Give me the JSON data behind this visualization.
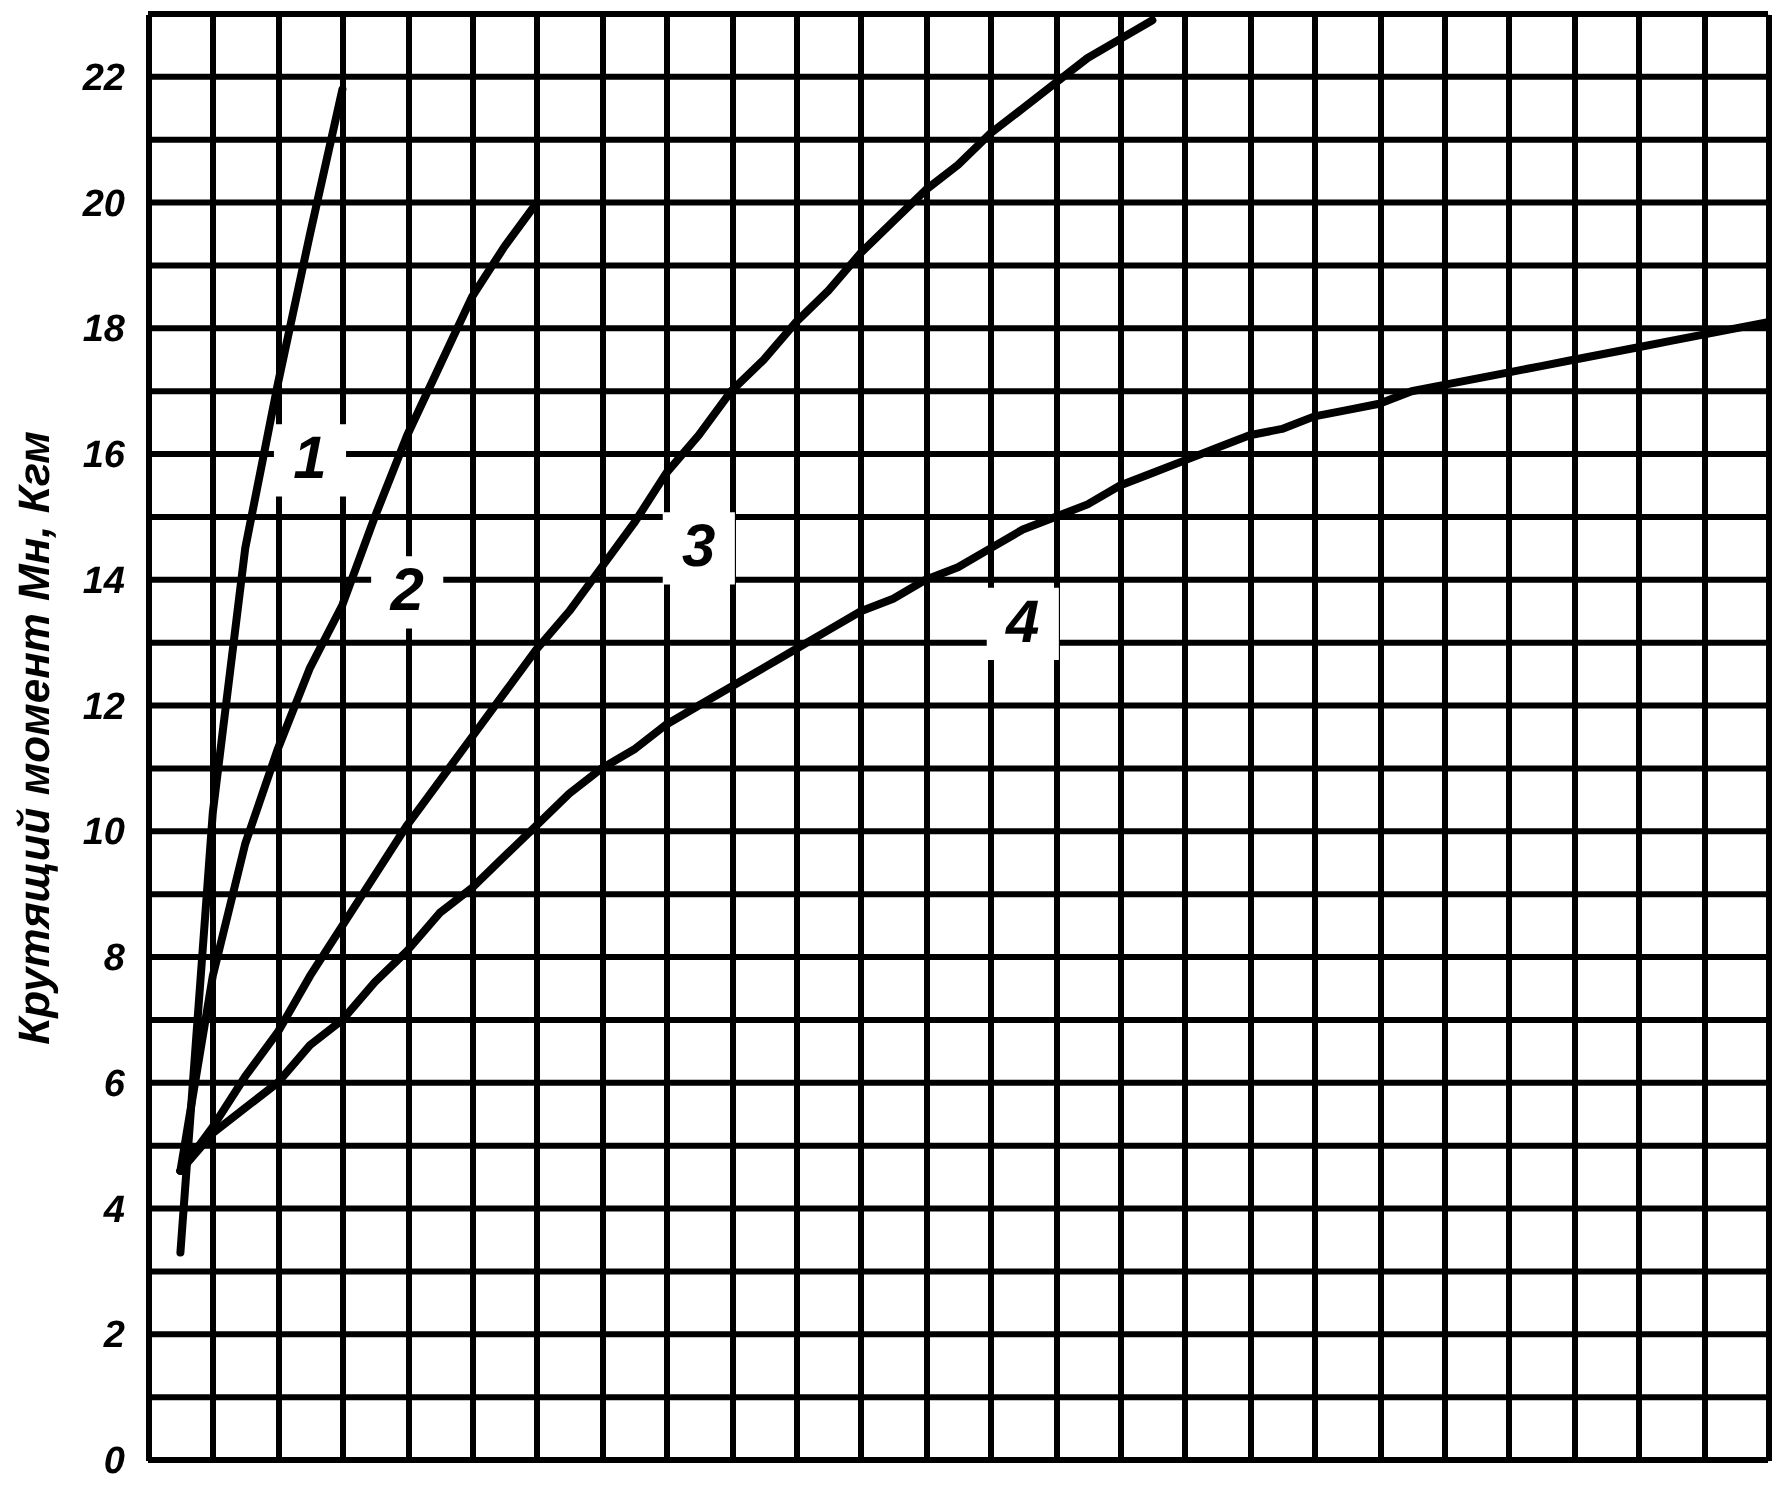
{
  "chart_data": {
    "type": "line",
    "ylabel": "Крутящий момент Mн, Кгм",
    "categories": [
      null,
      null,
      null,
      null,
      null,
      null,
      null,
      null,
      null,
      null,
      null,
      null,
      null,
      null,
      null,
      null,
      null,
      null,
      null,
      null,
      null,
      null,
      null,
      null,
      null,
      null,
      null,
      null,
      null,
      null,
      null,
      null,
      null,
      null,
      null,
      null,
      null,
      null,
      null,
      null,
      null,
      null,
      null,
      null,
      null,
      null,
      null,
      null,
      null,
      null,
      null
    ],
    "series": [
      {
        "name": "1",
        "color": "#000000",
        "values": [
          null,
          3.3,
          10.3,
          14.5,
          17.1,
          19.5,
          21.8,
          null,
          null,
          null,
          null,
          null,
          null,
          null,
          null,
          null,
          null,
          null,
          null,
          null,
          null,
          null,
          null,
          null,
          null,
          null,
          null,
          null,
          null,
          null,
          null,
          null,
          null,
          null,
          null,
          null,
          null,
          null,
          null,
          null,
          null,
          null,
          null,
          null,
          null,
          null,
          null,
          null,
          null,
          null,
          null
        ]
      },
      {
        "name": "2",
        "color": "#000000",
        "values": [
          null,
          4.6,
          7.7,
          9.8,
          11.3,
          12.6,
          13.6,
          15.0,
          16.3,
          17.4,
          18.5,
          19.3,
          20.0,
          null,
          null,
          null,
          null,
          null,
          null,
          null,
          null,
          null,
          null,
          null,
          null,
          null,
          null,
          null,
          null,
          null,
          null,
          null,
          null,
          null,
          null,
          null,
          null,
          null,
          null,
          null,
          null,
          null,
          null,
          null,
          null,
          null,
          null,
          null,
          null,
          null,
          null
        ]
      },
      {
        "name": "3",
        "color": "#000000",
        "values": [
          null,
          4.6,
          5.3,
          6.1,
          6.8,
          7.7,
          8.5,
          9.3,
          10.1,
          10.8,
          11.5,
          12.2,
          12.9,
          13.5,
          14.2,
          14.9,
          15.7,
          16.3,
          17.0,
          17.5,
          18.1,
          18.6,
          19.2,
          19.7,
          20.2,
          20.6,
          21.1,
          21.5,
          21.9,
          22.3,
          22.6,
          22.9,
          null,
          null,
          null,
          null,
          null,
          null,
          null,
          null,
          null,
          null,
          null,
          null,
          null,
          null,
          null,
          null,
          null,
          null,
          null
        ]
      },
      {
        "name": "4",
        "color": "#000000",
        "values": [
          null,
          4.6,
          5.2,
          5.6,
          6.0,
          6.6,
          7.0,
          7.6,
          8.1,
          8.7,
          9.1,
          9.6,
          10.1,
          10.6,
          11.0,
          11.3,
          11.7,
          12.0,
          12.3,
          12.6,
          12.9,
          13.2,
          13.5,
          13.7,
          14.0,
          14.2,
          14.5,
          14.8,
          15.0,
          15.2,
          15.5,
          15.7,
          15.9,
          16.1,
          16.3,
          16.4,
          16.6,
          16.7,
          16.8,
          17.0,
          17.1,
          17.2,
          17.3,
          17.4,
          17.5,
          17.6,
          17.7,
          17.8,
          17.9,
          18.0,
          18.1
        ]
      }
    ],
    "ylim": [
      0,
      23
    ],
    "yticks": [
      0,
      {
        "value": 1,
        "label": null
      },
      2,
      {
        "value": 3,
        "label": null
      },
      4,
      {
        "value": 5,
        "label": null
      },
      6,
      {
        "value": 7,
        "label": null
      },
      8,
      {
        "value": 9,
        "label": null
      },
      10,
      {
        "value": 11,
        "label": null
      },
      12,
      {
        "value": 13,
        "label": null
      },
      14,
      {
        "value": 15,
        "label": null
      },
      16,
      {
        "value": 17,
        "label": null
      },
      18,
      {
        "value": 19,
        "label": null
      },
      20,
      {
        "value": 21,
        "label": null
      },
      22,
      {
        "value": 23,
        "label": null
      }
    ],
    "tick_labels": "y",
    "grid": true,
    "marker": "none",
    "line_style": "solid"
  }
}
